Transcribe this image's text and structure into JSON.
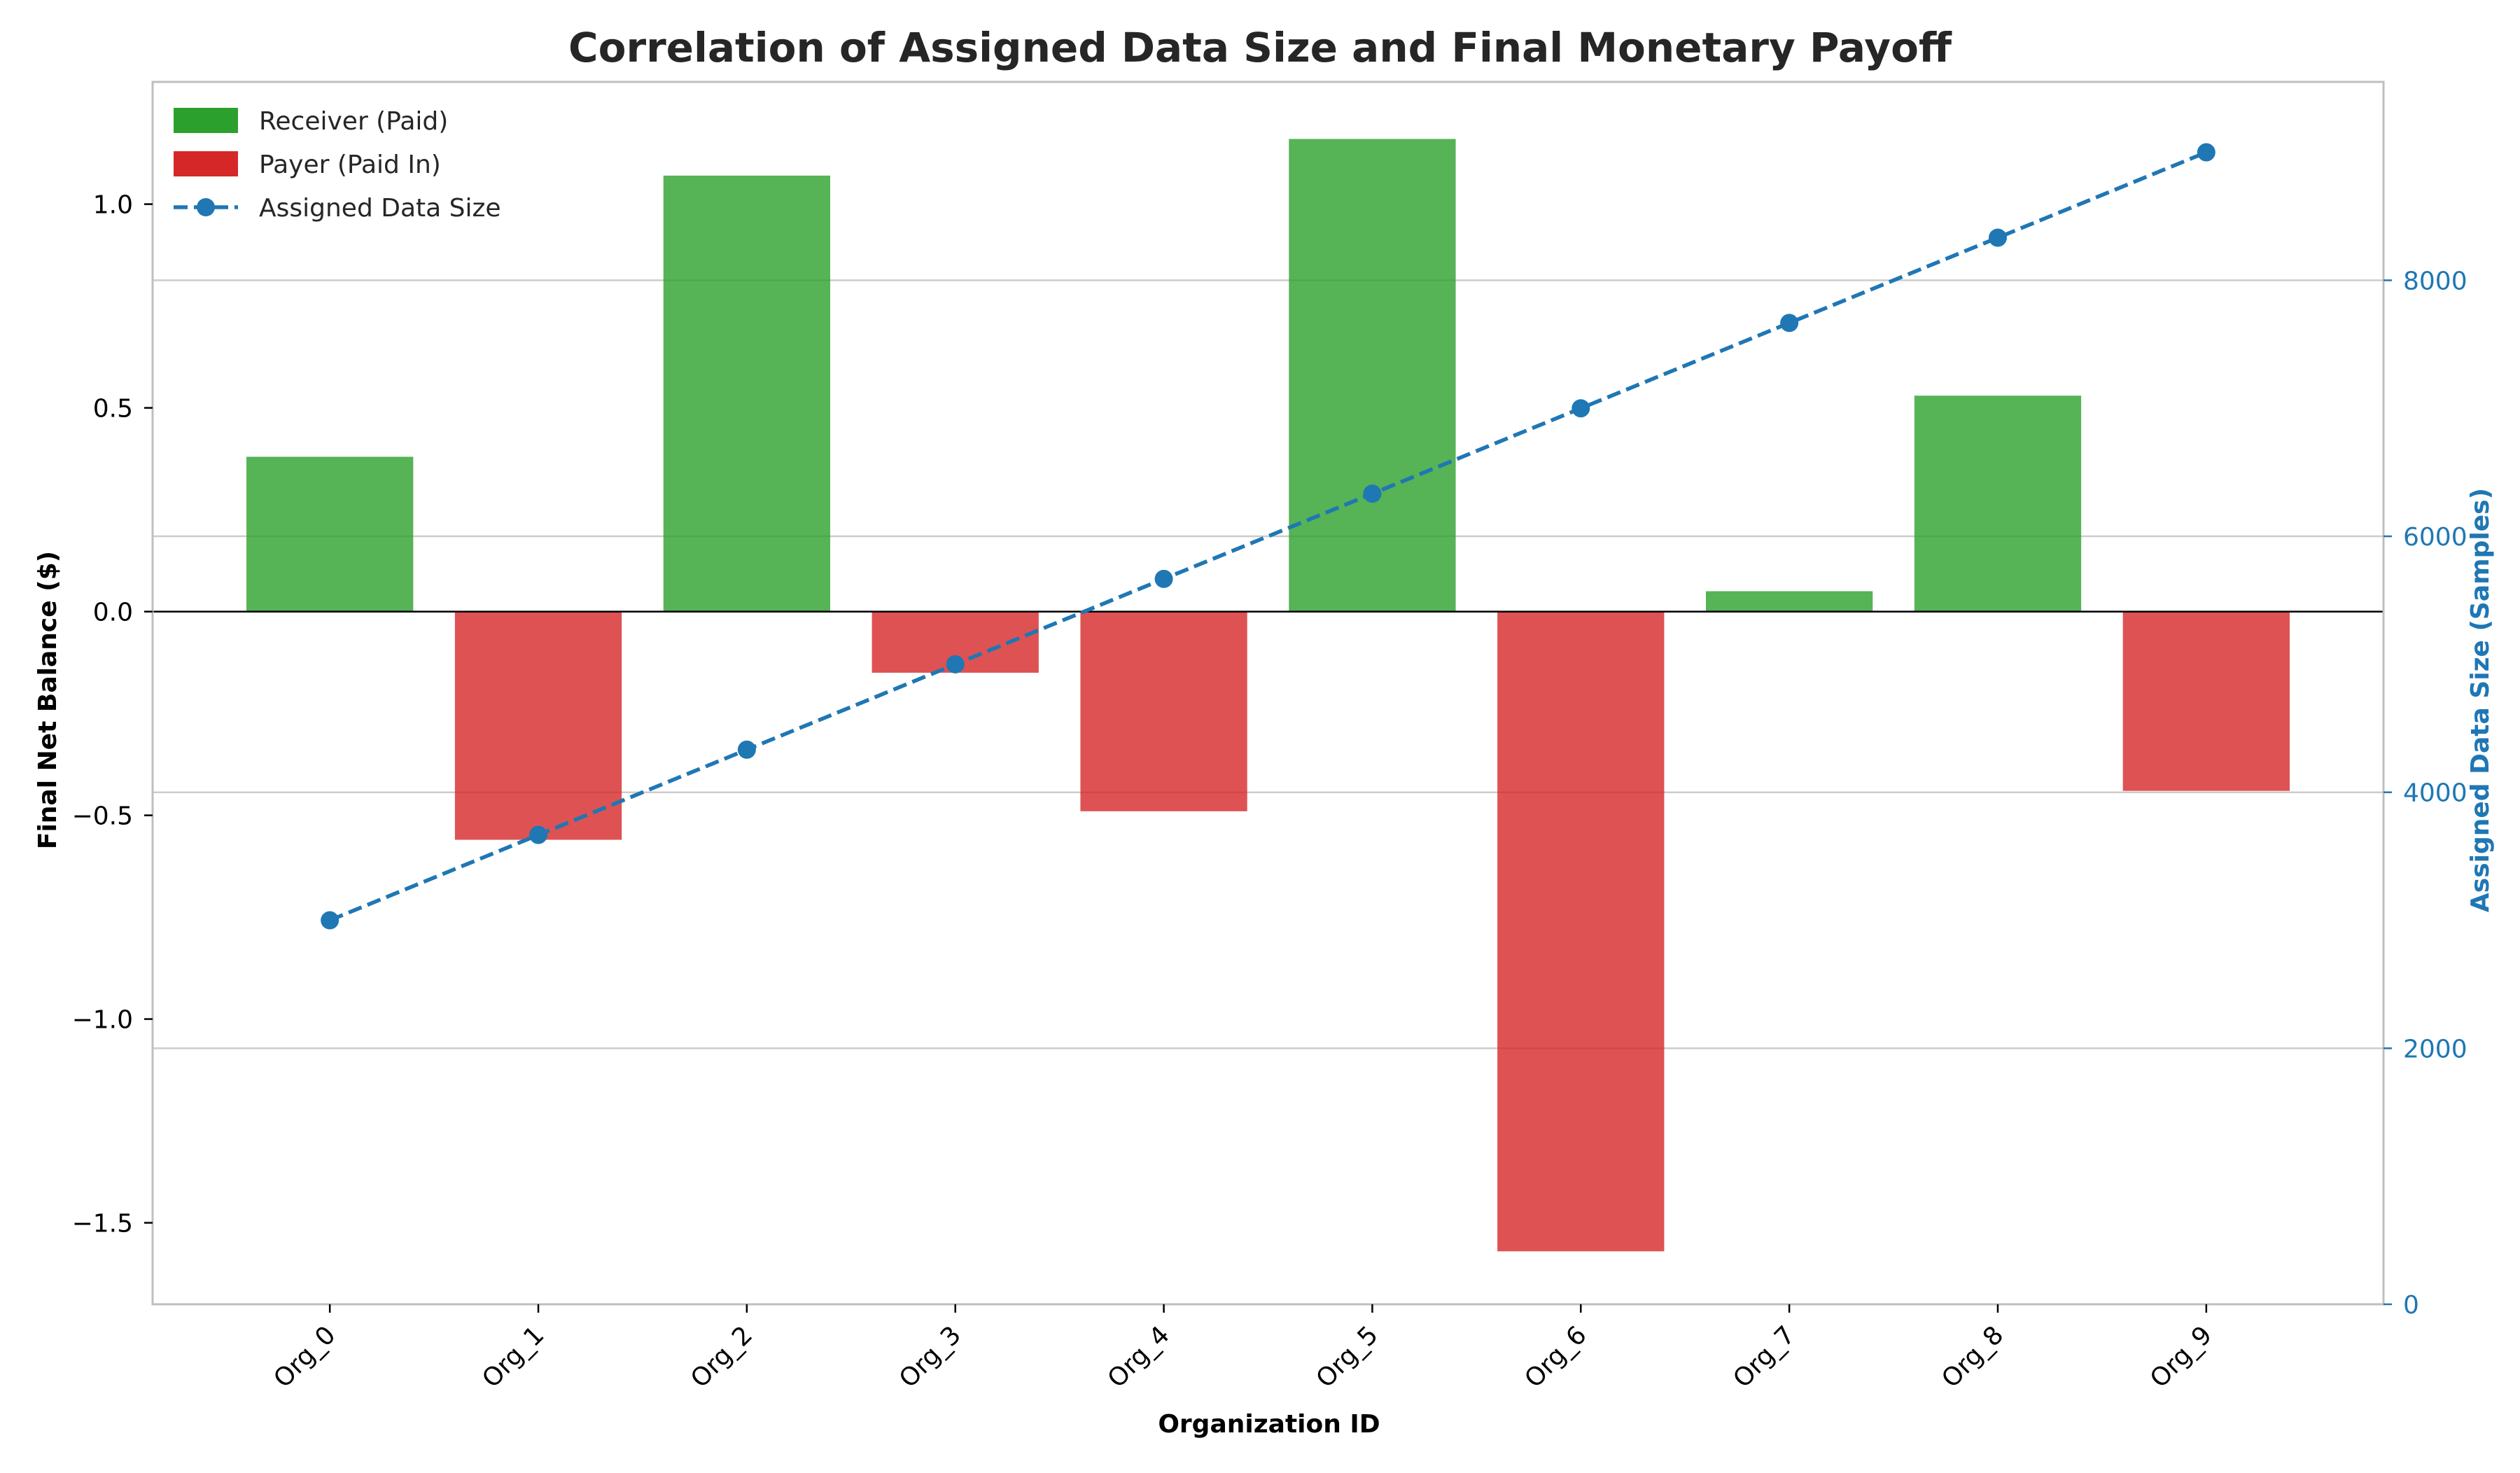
{
  "chart_data": {
    "type": "bar",
    "title": "Correlation of Assigned Data Size and Final Monetary Payoff",
    "xlabel": "Organization ID",
    "ylabel": "Final Net Balance ($)",
    "y2label": "Assigned Data Size (Samples)",
    "categories": [
      "Org_0",
      "Org_1",
      "Org_2",
      "Org_3",
      "Org_4",
      "Org_5",
      "Org_6",
      "Org_7",
      "Org_8",
      "Org_9"
    ],
    "series": [
      {
        "name": "Final Net Balance",
        "type": "bar",
        "axis": "left",
        "values": [
          0.38,
          -0.56,
          1.07,
          -0.15,
          -0.49,
          1.16,
          -1.57,
          0.05,
          0.53,
          -0.44
        ]
      },
      {
        "name": "Assigned Data Size",
        "type": "line",
        "axis": "right",
        "values": [
          3000,
          3667,
          4333,
          5000,
          5667,
          6333,
          7000,
          7667,
          8333,
          9000
        ]
      }
    ],
    "legend": {
      "position": "top-left",
      "entries": [
        {
          "label": "Receiver (Paid)",
          "kind": "bar",
          "color": "#2ca02c"
        },
        {
          "label": "Payer (Paid In)",
          "kind": "bar",
          "color": "#d62728"
        },
        {
          "label": "Assigned Data Size",
          "kind": "line-marker",
          "color": "#1f77b4"
        }
      ]
    },
    "ylim": [
      -1.7,
      1.3
    ],
    "y2lim": [
      0,
      9550
    ],
    "yticks": [
      -1.5,
      -1.0,
      -0.5,
      0.0,
      0.5,
      1.0
    ],
    "yticklabels": [
      "−1.5",
      "−1.0",
      "−0.5",
      "0.0",
      "0.5",
      "1.0"
    ],
    "y2ticks": [
      0,
      2000,
      4000,
      6000,
      8000
    ],
    "y2ticklabels": [
      "0",
      "2000",
      "4000",
      "6000",
      "8000"
    ],
    "grid": true,
    "grid_axis": "right",
    "zero_line": true,
    "colors": {
      "receiver": "#2ca02c",
      "payer": "#d62728",
      "line": "#1f77b4",
      "right_axis": "#1f77b4",
      "grid": "#cccccc",
      "spine": "#bfbfbf"
    },
    "bar_opacity": 0.8,
    "line_style": "dashed"
  }
}
